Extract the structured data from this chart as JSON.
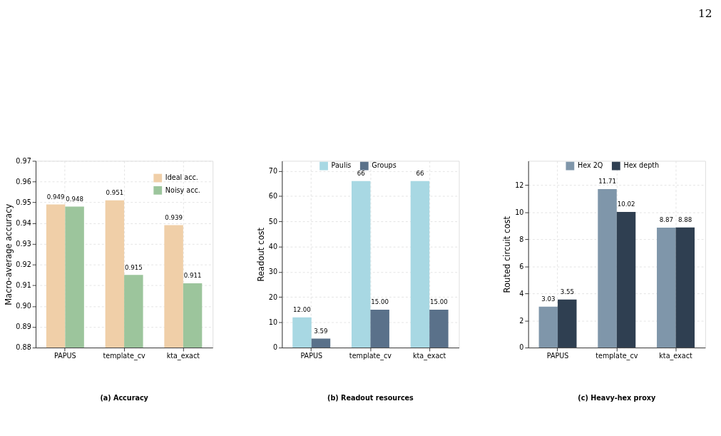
{
  "chart_data": [
    {
      "type": "bar",
      "title": "(a) Accuracy",
      "ylabel": "Macro-average accuracy",
      "categories": [
        "PAPUS",
        "template_cv",
        "kta_exact"
      ],
      "series": [
        {
          "name": "Ideal acc.",
          "color": "#f0cfa8",
          "values": [
            0.949,
            0.951,
            0.939
          ]
        },
        {
          "name": "Noisy acc.",
          "color": "#9cc59c",
          "values": [
            0.948,
            0.915,
            0.911
          ]
        }
      ],
      "ylim": [
        0.88,
        0.97
      ],
      "yticks": [
        0.88,
        0.89,
        {
          "value": 0.9,
          "label": "0.90"
        },
        0.91,
        0.92,
        0.93,
        0.94,
        0.95,
        0.96,
        0.97
      ],
      "data_labels": true,
      "grid": true,
      "legend": "top right"
    },
    {
      "type": "bar",
      "title": "(b) Readout resources",
      "ylabel": "Readout cost",
      "categories": [
        "PAPUS",
        "template_cv",
        "kta_exact"
      ],
      "series": [
        {
          "name": "Paulis",
          "color": "#a8d8e3",
          "values": [
            12,
            66,
            66
          ],
          "value_labels": [
            "12.00",
            "66",
            "66"
          ]
        },
        {
          "name": "Groups",
          "color": "#5a718a",
          "values": [
            3.59,
            15,
            15
          ],
          "value_labels": [
            "3.59",
            "15.00",
            "15.00"
          ]
        }
      ],
      "ylim": [
        0,
        74
      ],
      "yticks": [
        0,
        10,
        20,
        30,
        40,
        50,
        60,
        70
      ],
      "grid": true,
      "legend": "top"
    },
    {
      "type": "bar",
      "title": "(c) Heavy-hex proxy",
      "ylabel": "Routed circuit cost",
      "categories": [
        "PAPUS",
        "template_cv",
        "kta_exact"
      ],
      "series": [
        {
          "name": "Hex 2Q",
          "color": "#7f96aa",
          "values": [
            3.03,
            11.71,
            8.87
          ]
        },
        {
          "name": "Hex depth",
          "color": "#2f3f51",
          "values": [
            3.55,
            10.02,
            8.88
          ]
        }
      ],
      "ylim": [
        0,
        13.8
      ],
      "yticks": [
        0,
        2,
        4,
        6,
        8,
        10,
        12
      ],
      "data_labels": true,
      "grid": true,
      "legend": "top",
      "annotations": [
        "12"
      ]
    }
  ]
}
